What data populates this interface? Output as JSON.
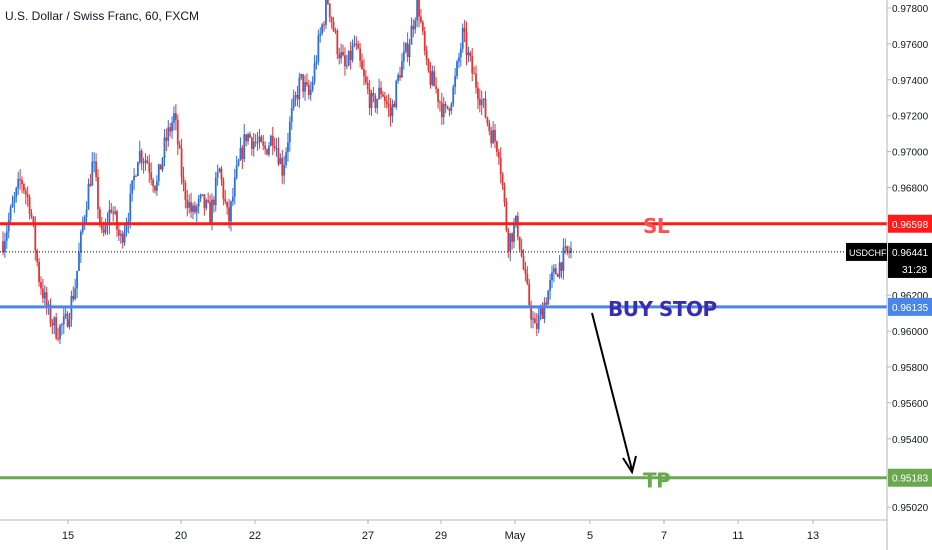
{
  "chart_data": {
    "type": "candlestick",
    "title": "U.S. Dollar / Swiss Franc, 60, FXCM",
    "symbol": "USDCHF",
    "last_price": "0.96441",
    "countdown": "31:28",
    "ylim": [
      0.9495,
      0.979
    ],
    "y_ticks": [
      "0.97800",
      "0.97600",
      "0.97400",
      "0.97200",
      "0.97000",
      "0.96800",
      "0.96600",
      "0.96400",
      "0.96200",
      "0.96000",
      "0.95800",
      "0.95600",
      "0.95400",
      "0.95200",
      "0.95020"
    ],
    "x_ticks": [
      "15",
      "20",
      "22",
      "27",
      "29",
      "May",
      "5",
      "7",
      "11",
      "13"
    ],
    "levels": [
      {
        "name": "SL",
        "label": "SL",
        "value": 0.96598,
        "tag": "0.96598",
        "color": "#ff1a1a"
      },
      {
        "name": "BUY STOP",
        "label": "BUY STOP",
        "value": 0.96135,
        "tag": "0.96135",
        "color": "#4a86e8"
      },
      {
        "name": "TP",
        "label": "TP",
        "value": 0.95183,
        "tag": "0.95183",
        "color": "#6aa84f"
      }
    ],
    "price_path": [
      0.965,
      0.9668,
      0.9685,
      0.967,
      0.963,
      0.961,
      0.96,
      0.9605,
      0.9625,
      0.9665,
      0.9695,
      0.965,
      0.967,
      0.965,
      0.9668,
      0.97,
      0.9695,
      0.968,
      0.9705,
      0.972,
      0.968,
      0.9665,
      0.9672,
      0.9665,
      0.969,
      0.966,
      0.969,
      0.971,
      0.9705,
      0.97,
      0.971,
      0.969,
      0.972,
      0.974,
      0.973,
      0.976,
      0.9785,
      0.976,
      0.9745,
      0.976,
      0.974,
      0.9725,
      0.9735,
      0.972,
      0.9745,
      0.976,
      0.9785,
      0.9745,
      0.9735,
      0.972,
      0.9735,
      0.9765,
      0.9745,
      0.973,
      0.9712,
      0.9702,
      0.965,
      0.966,
      0.9625,
      0.96,
      0.9615,
      0.963,
      0.964,
      0.9645
    ]
  },
  "colors": {
    "up": "#2e6fd8",
    "down": "#e03535",
    "axis_text": "#131722",
    "grid_dots": "#000000"
  }
}
